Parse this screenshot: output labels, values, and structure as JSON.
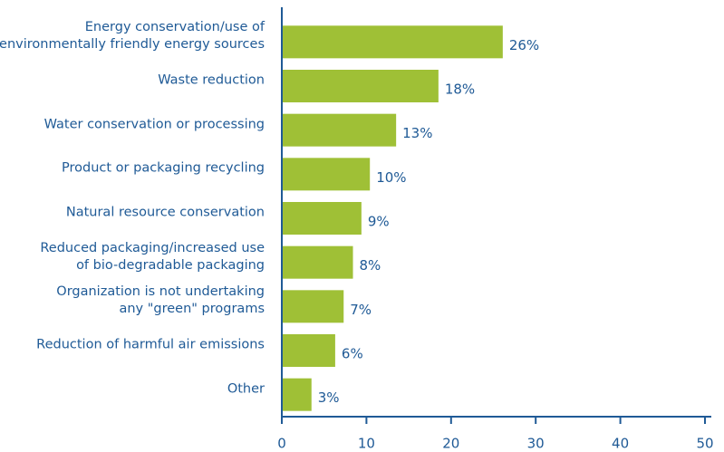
{
  "chart_data": {
    "type": "barh",
    "categories": [
      "Energy conservation/use of\nenvironmentally friendly energy sources",
      "Waste reduction",
      "Water conservation or processing",
      "Product or packaging recycling",
      "Natural resource conservation",
      "Reduced packaging/increased use\nof bio-degradable packaging",
      "Organization is not undertaking\nany \"green\" programs",
      "Reduction of harmful air emissions",
      "Other"
    ],
    "values": [
      26,
      18.4,
      13.4,
      10.3,
      9.3,
      8.3,
      7.2,
      6.2,
      3.4
    ],
    "value_labels": [
      "26%",
      "18%",
      "13%",
      "10%",
      "9%",
      "8%",
      "7%",
      "6%",
      "3%"
    ],
    "color": "#9fc036",
    "xlim": [
      0,
      50
    ],
    "xticks": [
      0,
      10,
      20,
      30,
      40,
      50
    ]
  }
}
